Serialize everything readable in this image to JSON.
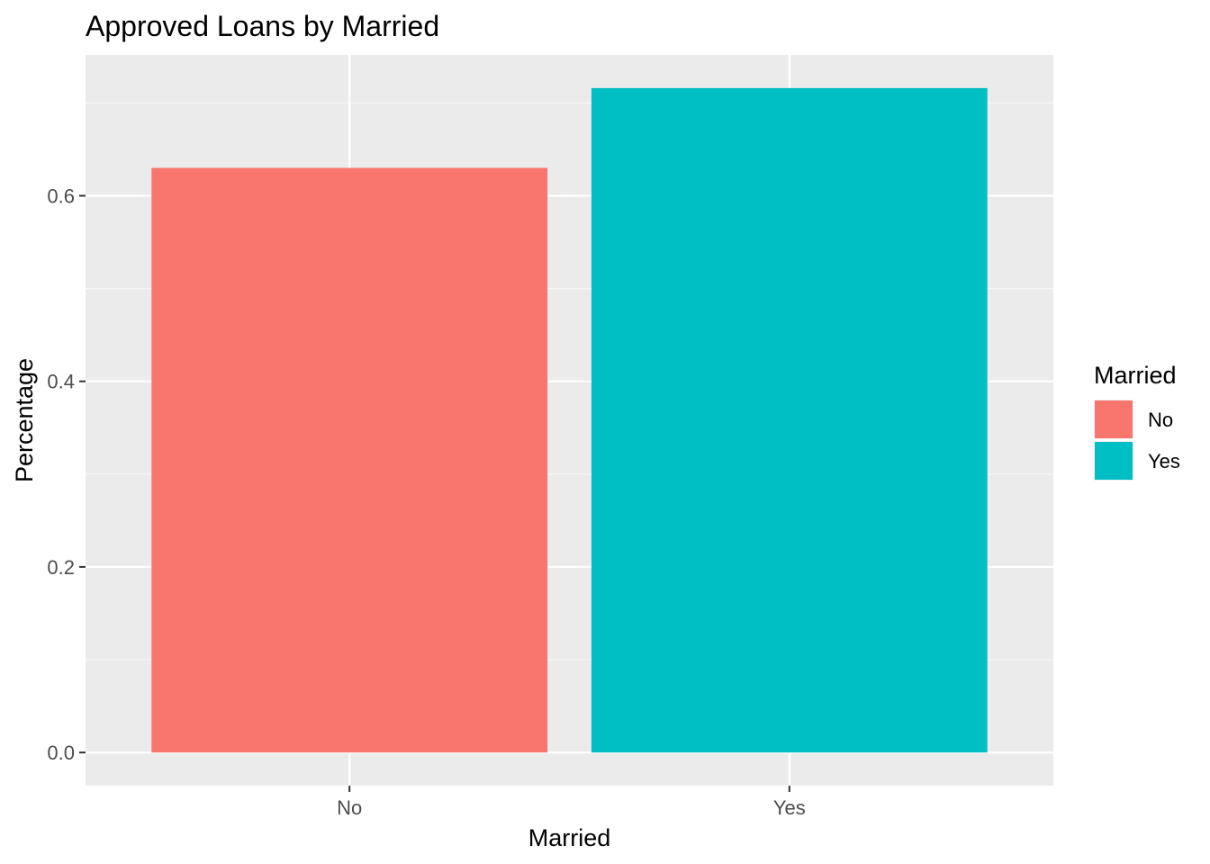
{
  "chart_data": {
    "type": "bar",
    "title": "Approved Loans by Married",
    "xlabel": "Married",
    "ylabel": "Percentage",
    "categories": [
      "No",
      "Yes"
    ],
    "values": [
      0.63,
      0.716
    ],
    "ylim": [
      -0.0358,
      0.7518
    ],
    "yticks": [
      0.0,
      0.2,
      0.4,
      0.6
    ],
    "ytick_labels": [
      "0.0",
      "0.2",
      "0.4",
      "0.6"
    ],
    "grid": true,
    "legend": {
      "title": "Married",
      "position": "right",
      "items": [
        {
          "label": "No",
          "color": "#F8766D"
        },
        {
          "label": "Yes",
          "color": "#00BFC4"
        }
      ]
    },
    "colors": {
      "panel_background": "#EBEBEB",
      "grid_major": "#FFFFFF",
      "grid_minor": "#F7F7F7",
      "tick_text": "#4D4D4D"
    }
  }
}
